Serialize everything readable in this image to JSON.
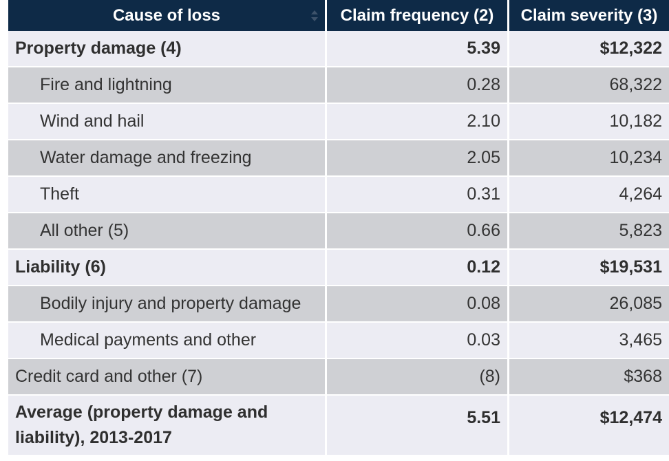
{
  "headers": {
    "cause": "Cause of loss",
    "frequency": "Claim frequency (2)",
    "severity": "Claim severity (3)"
  },
  "rows": [
    {
      "cause": "Property damage (4)",
      "frequency": "5.39",
      "severity": "$12,322"
    },
    {
      "cause": "Fire and lightning",
      "frequency": "0.28",
      "severity": "68,322"
    },
    {
      "cause": "Wind and hail",
      "frequency": "2.10",
      "severity": "10,182"
    },
    {
      "cause": "Water damage and freezing",
      "frequency": "2.05",
      "severity": "10,234"
    },
    {
      "cause": "Theft",
      "frequency": "0.31",
      "severity": "4,264"
    },
    {
      "cause": "All other (5)",
      "frequency": "0.66",
      "severity": "5,823"
    },
    {
      "cause": "Liability (6)",
      "frequency": "0.12",
      "severity": "$19,531"
    },
    {
      "cause": "Bodily injury and property damage",
      "frequency": "0.08",
      "severity": "26,085"
    },
    {
      "cause": "Medical payments and other",
      "frequency": "0.03",
      "severity": "3,465"
    },
    {
      "cause": "Credit card and other (7)",
      "frequency": "(8)",
      "severity": "$368"
    },
    {
      "cause": "Average (property damage and liability), 2013-2017",
      "frequency": "5.51",
      "severity": "$12,474"
    }
  ],
  "colors": {
    "header_bg": "#0e2a47",
    "row_light": "#ececf3",
    "row_gray": "#cfd0d4"
  },
  "icons": {
    "sort": "sort-icon"
  }
}
